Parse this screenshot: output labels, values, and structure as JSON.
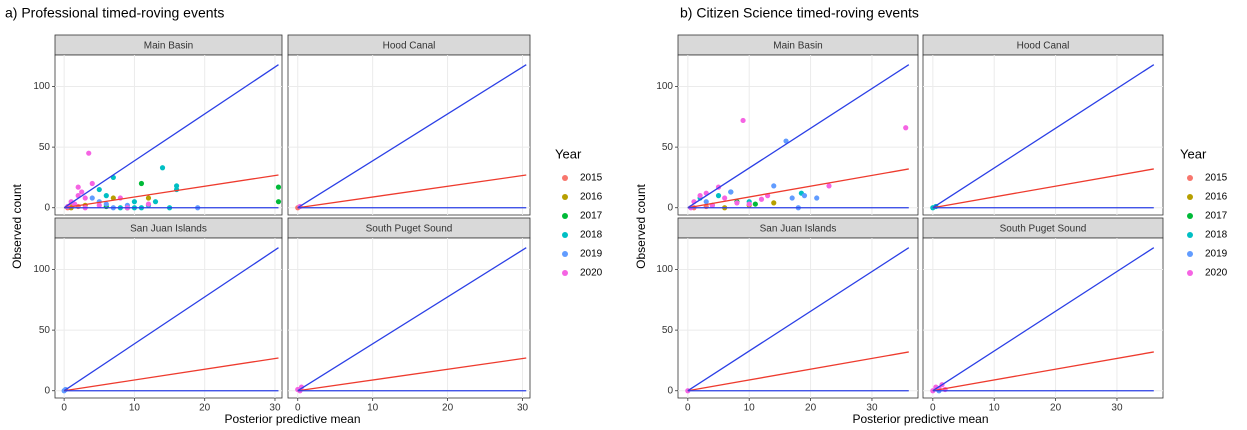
{
  "chart_data": [
    {
      "type": "scatter",
      "title": "a) Professional timed-roving events",
      "x_label": "Posterior predictive mean",
      "y_label": "Observed count",
      "legend_title": "Year",
      "xlim": [
        -1.3,
        31
      ],
      "xticks": [
        0,
        10,
        20,
        30
      ],
      "ylim": [
        -6,
        126
      ],
      "yticks": [
        0,
        50,
        100
      ],
      "grid": true,
      "series": [
        {
          "name": "2015",
          "color": "#F8766D"
        },
        {
          "name": "2016",
          "color": "#B79F00"
        },
        {
          "name": "2017",
          "color": "#00BA38"
        },
        {
          "name": "2018",
          "color": "#00BFC4"
        },
        {
          "name": "2019",
          "color": "#619CFF"
        },
        {
          "name": "2020",
          "color": "#F564E3"
        }
      ],
      "lines": [
        {
          "color": "#2B3FE6",
          "x": [
            0,
            30.5
          ],
          "values": [
            0,
            118
          ]
        },
        {
          "color": "#EE3B2E",
          "x": [
            0,
            30.5
          ],
          "values": [
            0,
            27
          ]
        },
        {
          "color": "#2B3FE6",
          "x": [
            0,
            30.5
          ],
          "values": [
            0,
            0
          ]
        }
      ],
      "facets": [
        {
          "name": "Main Basin",
          "series": [
            {
              "x": [
                0.5,
                2,
                1
              ],
              "values": [
                0,
                1,
                3
              ]
            },
            {
              "x": [
                7,
                12,
                3,
                1
              ],
              "values": [
                8,
                8,
                2,
                0
              ]
            },
            {
              "x": [
                11,
                30.5,
                30.5,
                9,
                6
              ],
              "values": [
                20,
                17,
                5,
                0,
                1
              ]
            },
            {
              "x": [
                5,
                6,
                7,
                10,
                11,
                12,
                14,
                16,
                16,
                13,
                10,
                8,
                15
              ],
              "values": [
                15,
                10,
                25,
                5,
                0,
                2,
                33,
                15,
                18,
                5,
                0,
                0,
                0
              ]
            },
            {
              "x": [
                4,
                5,
                6,
                19,
                7,
                9
              ],
              "values": [
                8,
                5,
                3,
                0,
                0,
                2
              ]
            },
            {
              "x": [
                1,
                2,
                2,
                3,
                3.5,
                4,
                1.5,
                0.5,
                5,
                3,
                8,
                12,
                9,
                2.5
              ],
              "values": [
                5,
                10,
                17,
                8,
                45,
                20,
                3,
                1,
                2,
                0,
                8,
                3,
                0,
                13
              ]
            }
          ]
        },
        {
          "name": "Hood Canal",
          "series": [
            {
              "x": [
                0
              ],
              "values": [
                0
              ]
            },
            {
              "x": [],
              "values": []
            },
            {
              "x": [],
              "values": []
            },
            {
              "x": [],
              "values": []
            },
            {
              "x": [],
              "values": []
            },
            {
              "x": [
                0.3
              ],
              "values": [
                1
              ]
            }
          ]
        },
        {
          "name": "San Juan Islands",
          "series": [
            {
              "x": [],
              "values": []
            },
            {
              "x": [],
              "values": []
            },
            {
              "x": [],
              "values": []
            },
            {
              "x": [],
              "values": []
            },
            {
              "x": [
                0,
                0.2
              ],
              "values": [
                0,
                1
              ]
            },
            {
              "x": [],
              "values": []
            }
          ]
        },
        {
          "name": "South Puget Sound",
          "series": [
            {
              "x": [],
              "values": []
            },
            {
              "x": [],
              "values": []
            },
            {
              "x": [],
              "values": []
            },
            {
              "x": [],
              "values": []
            },
            {
              "x": [],
              "values": []
            },
            {
              "x": [
                0,
                0.5,
                0.3
              ],
              "values": [
                1,
                3,
                0
              ]
            }
          ]
        }
      ]
    },
    {
      "type": "scatter",
      "title": "b) Citizen Science timed-roving events",
      "x_label": "Posterior predictive mean",
      "y_label": "Observed count",
      "legend_title": "Year",
      "xlim": [
        -1.6,
        37.5
      ],
      "xticks": [
        0,
        10,
        20,
        30
      ],
      "ylim": [
        -6,
        126
      ],
      "yticks": [
        0,
        50,
        100
      ],
      "grid": true,
      "series": [
        {
          "name": "2015",
          "color": "#F8766D"
        },
        {
          "name": "2016",
          "color": "#B79F00"
        },
        {
          "name": "2017",
          "color": "#00BA38"
        },
        {
          "name": "2018",
          "color": "#00BFC4"
        },
        {
          "name": "2019",
          "color": "#619CFF"
        },
        {
          "name": "2020",
          "color": "#F564E3"
        }
      ],
      "lines": [
        {
          "color": "#2B3FE6",
          "x": [
            0,
            36
          ],
          "values": [
            0,
            118
          ]
        },
        {
          "color": "#EE3B2E",
          "x": [
            0,
            36
          ],
          "values": [
            0,
            32
          ]
        },
        {
          "color": "#2B3FE6",
          "x": [
            0,
            36
          ],
          "values": [
            0,
            0
          ]
        }
      ],
      "facets": [
        {
          "name": "Main Basin",
          "series": [
            {
              "x": [
                1,
                3
              ],
              "values": [
                0,
                1
              ]
            },
            {
              "x": [
                14,
                10,
                6
              ],
              "values": [
                4,
                2,
                0
              ]
            },
            {
              "x": [
                8,
                11
              ],
              "values": [
                5,
                3
              ]
            },
            {
              "x": [
                7,
                18.5,
                5,
                10,
                2,
                4
              ],
              "values": [
                13,
                12,
                10,
                5,
                8,
                2
              ]
            },
            {
              "x": [
                16,
                14,
                18,
                19,
                21,
                17,
                7,
                3
              ],
              "values": [
                55,
                18,
                0,
                10,
                8,
                8,
                13,
                5
              ]
            },
            {
              "x": [
                35.5,
                9,
                5,
                3,
                2,
                1,
                6,
                12,
                13,
                23,
                0.5,
                4,
                8,
                10
              ],
              "values": [
                66,
                72,
                17,
                12,
                10,
                5,
                8,
                7,
                10,
                18,
                0,
                2,
                4,
                3
              ]
            }
          ]
        },
        {
          "name": "Hood Canal",
          "series": [
            {
              "x": [],
              "values": []
            },
            {
              "x": [],
              "values": []
            },
            {
              "x": [],
              "values": []
            },
            {
              "x": [
                0.5,
                0
              ],
              "values": [
                1,
                0
              ]
            },
            {
              "x": [],
              "values": []
            },
            {
              "x": [],
              "values": []
            }
          ]
        },
        {
          "name": "San Juan Islands",
          "series": [
            {
              "x": [],
              "values": []
            },
            {
              "x": [],
              "values": []
            },
            {
              "x": [],
              "values": []
            },
            {
              "x": [],
              "values": []
            },
            {
              "x": [],
              "values": []
            },
            {
              "x": [
                0
              ],
              "values": [
                0
              ]
            }
          ]
        },
        {
          "name": "South Puget Sound",
          "series": [
            {
              "x": [],
              "values": []
            },
            {
              "x": [],
              "values": []
            },
            {
              "x": [],
              "values": []
            },
            {
              "x": [],
              "values": []
            },
            {
              "x": [
                1
              ],
              "values": [
                0
              ]
            },
            {
              "x": [
                0,
                1,
                2,
                1.5,
                0.5
              ],
              "values": [
                0,
                2,
                1,
                5,
                3
              ]
            }
          ]
        }
      ]
    }
  ]
}
